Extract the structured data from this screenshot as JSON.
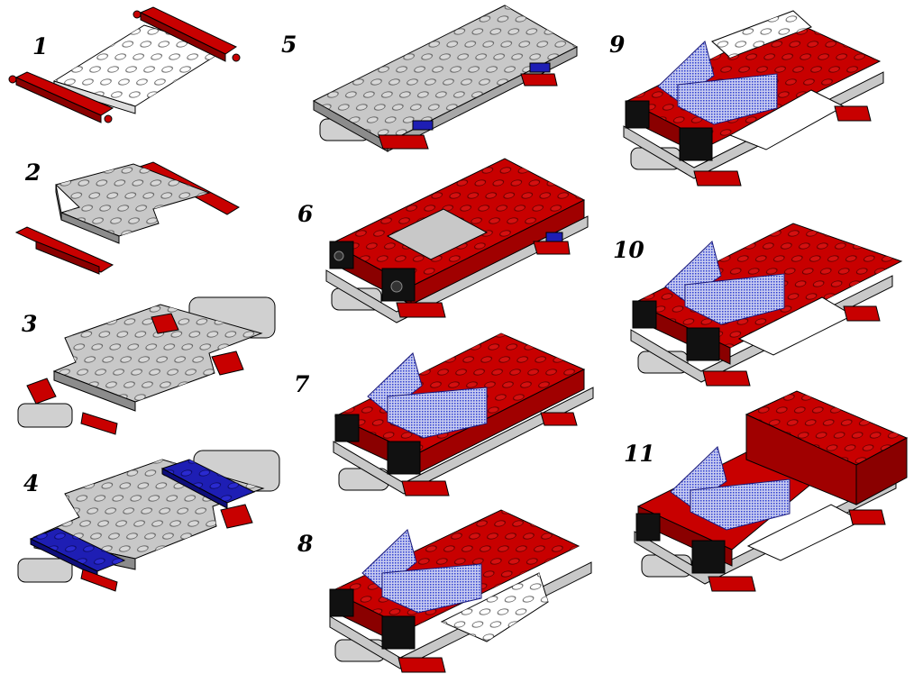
{
  "steps": [
    {
      "label": "1",
      "parts": [
        "white-plate",
        "red-axle-plate",
        "red-axle-plate"
      ]
    },
    {
      "label": "2",
      "parts": [
        "gray-plate-cross",
        "red-axle-plate",
        "red-axle-plate"
      ]
    },
    {
      "label": "3",
      "parts": [
        "gray-plate-cross",
        "gray-wheels",
        "red-axle-plate"
      ]
    },
    {
      "label": "4",
      "parts": [
        "gray-plate-cross",
        "blue-plate",
        "blue-plate",
        "gray-wheels"
      ]
    },
    {
      "label": "5",
      "parts": [
        "gray-base-plate",
        "red-axle-plate"
      ]
    },
    {
      "label": "6",
      "parts": [
        "red-brick-frame",
        "black-light-brick",
        "black-light-brick"
      ]
    },
    {
      "label": "7",
      "parts": [
        "red-brick-top",
        "blue-windscreen-seat",
        "black-light-brick"
      ]
    },
    {
      "label": "8",
      "parts": [
        "red-brick-top",
        "blue-windscreen-seat",
        "white-slope"
      ]
    },
    {
      "label": "9",
      "parts": [
        "red-plate-top",
        "blue-windscreen-seat",
        "white-slope"
      ]
    },
    {
      "label": "10",
      "parts": [
        "red-plate-large",
        "blue-windscreen-seat",
        "white-slope"
      ]
    },
    {
      "label": "11",
      "parts": [
        "red-brick-stack",
        "blue-windscreen-seat",
        "white-slope"
      ]
    }
  ],
  "colors": {
    "red": "#c80000",
    "red_dark": "#8a0000",
    "gray": "#c8c8c8",
    "gray_dark": "#8c8c8c",
    "white": "#ffffff",
    "blue": "#1e1eb4",
    "blue_glass": "#4a5cd6",
    "black": "#111111",
    "outline": "#000000"
  }
}
